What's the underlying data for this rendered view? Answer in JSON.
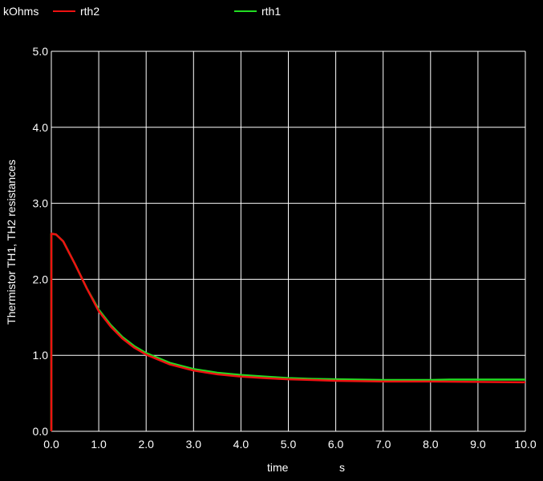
{
  "chart_data": {
    "type": "line",
    "unit_label": "kOhms",
    "ylabel": "Thermistor TH1, TH2 resistances",
    "xlabel": "time",
    "x_unit": "s",
    "xlim": [
      0,
      10
    ],
    "ylim": [
      0,
      5
    ],
    "x_ticks": [
      "0.0",
      "1.0",
      "2.0",
      "3.0",
      "4.0",
      "5.0",
      "6.0",
      "7.0",
      "8.0",
      "9.0",
      "10.0"
    ],
    "y_ticks": [
      "0.0",
      "1.0",
      "2.0",
      "3.0",
      "4.0",
      "5.0"
    ],
    "grid": true,
    "legend_position": "top",
    "series": [
      {
        "name": "rth1",
        "color": "#22dd22",
        "points": [
          [
            0,
            0.0
          ],
          [
            0.0,
            2.6
          ],
          [
            0.1,
            2.59
          ],
          [
            0.25,
            2.5
          ],
          [
            0.5,
            2.2
          ],
          [
            0.75,
            1.88
          ],
          [
            1.0,
            1.6
          ],
          [
            1.25,
            1.4
          ],
          [
            1.5,
            1.24
          ],
          [
            1.75,
            1.12
          ],
          [
            2.0,
            1.03
          ],
          [
            2.5,
            0.9
          ],
          [
            3.0,
            0.82
          ],
          [
            3.5,
            0.77
          ],
          [
            4.0,
            0.74
          ],
          [
            4.5,
            0.72
          ],
          [
            5.0,
            0.7
          ],
          [
            5.5,
            0.69
          ],
          [
            6.0,
            0.685
          ],
          [
            7.0,
            0.675
          ],
          [
            8.0,
            0.675
          ],
          [
            8.4,
            0.68
          ],
          [
            9.0,
            0.68
          ],
          [
            10.0,
            0.68
          ]
        ]
      },
      {
        "name": "rth2",
        "color": "#ee1111",
        "points": [
          [
            0,
            0.0
          ],
          [
            0.0,
            2.6
          ],
          [
            0.1,
            2.59
          ],
          [
            0.25,
            2.5
          ],
          [
            0.5,
            2.2
          ],
          [
            0.75,
            1.88
          ],
          [
            1.0,
            1.58
          ],
          [
            1.25,
            1.38
          ],
          [
            1.5,
            1.22
          ],
          [
            1.75,
            1.1
          ],
          [
            2.0,
            1.01
          ],
          [
            2.5,
            0.88
          ],
          [
            3.0,
            0.8
          ],
          [
            3.5,
            0.75
          ],
          [
            4.0,
            0.72
          ],
          [
            4.5,
            0.7
          ],
          [
            5.0,
            0.685
          ],
          [
            5.5,
            0.675
          ],
          [
            6.0,
            0.665
          ],
          [
            7.0,
            0.655
          ],
          [
            8.0,
            0.655
          ],
          [
            9.0,
            0.65
          ],
          [
            10.0,
            0.645
          ]
        ]
      }
    ]
  }
}
